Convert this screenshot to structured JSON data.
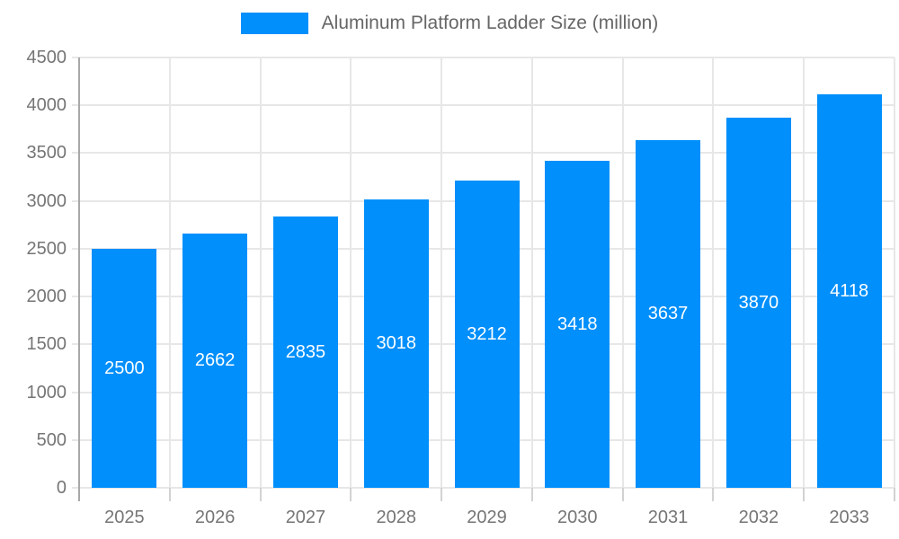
{
  "legend": {
    "label": "Aluminum Platform Ladder Size (million)"
  },
  "colors": {
    "bar": "#008FFB",
    "bar_label": "#ffffff",
    "axis_text": "#757575",
    "legend_text": "#666666",
    "grid": "#e7e7e7",
    "axis_line": "#a8a8a8",
    "tick": "#d2d2d2",
    "background": "#ffffff"
  },
  "chart_data": {
    "type": "bar",
    "title": "Aluminum Platform Ladder Size (million)",
    "categories": [
      "2025",
      "2026",
      "2027",
      "2028",
      "2029",
      "2030",
      "2031",
      "2032",
      "2033"
    ],
    "values": [
      2500,
      2662,
      2835,
      3018,
      3212,
      3418,
      3637,
      3870,
      4118
    ],
    "series": [
      {
        "name": "Aluminum Platform Ladder Size (million)",
        "values": [
          2500,
          2662,
          2835,
          3018,
          3212,
          3418,
          3637,
          3870,
          4118
        ]
      }
    ],
    "xlabel": "",
    "ylabel": "",
    "ylim": [
      0,
      4500
    ],
    "ytick_step": 500,
    "grid": true,
    "legend_position": "top",
    "data_labels": "inside-center"
  }
}
